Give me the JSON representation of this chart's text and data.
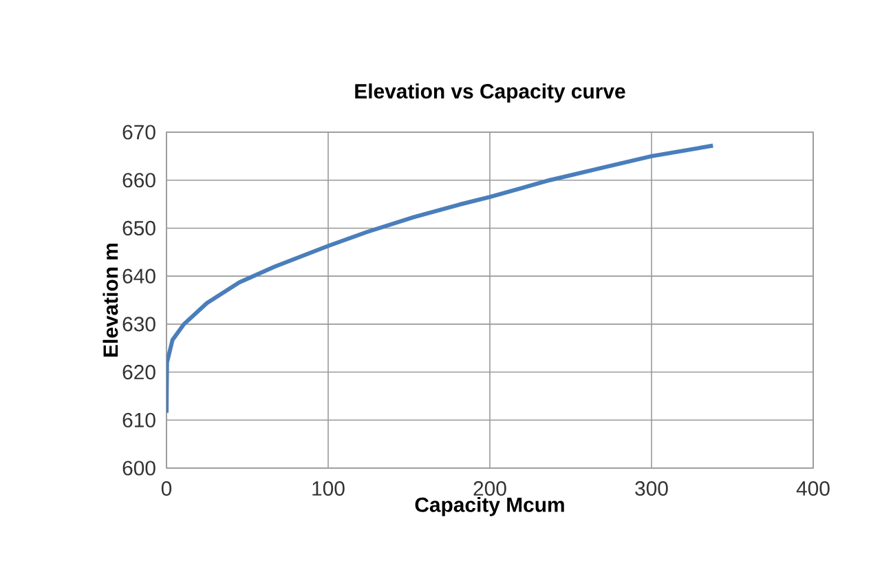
{
  "chart_data": {
    "type": "line",
    "title": "Elevation vs Capacity curve",
    "xlabel": "Capacity Mcum",
    "ylabel": "Elevation m",
    "x": [
      0,
      0.3,
      3.7,
      10.8,
      25,
      45,
      67,
      100,
      124,
      153,
      181,
      200,
      237,
      266,
      300,
      338
    ],
    "series": [
      {
        "color": "#4a7ebb",
        "values": [
          611.5,
          622,
          626.7,
          630,
          634.4,
          638.7,
          642,
          646.3,
          649.2,
          652.3,
          654.9,
          656.5,
          660,
          662.3,
          665,
          667.2
        ]
      }
    ],
    "xlim": [
      0,
      400
    ],
    "xticks": [
      0,
      100,
      200,
      300,
      400
    ],
    "ylim": [
      600,
      670
    ],
    "yticks": [
      600,
      610,
      620,
      630,
      640,
      650,
      660,
      670
    ],
    "grid": true,
    "marker": "none",
    "line_style": "solid"
  }
}
